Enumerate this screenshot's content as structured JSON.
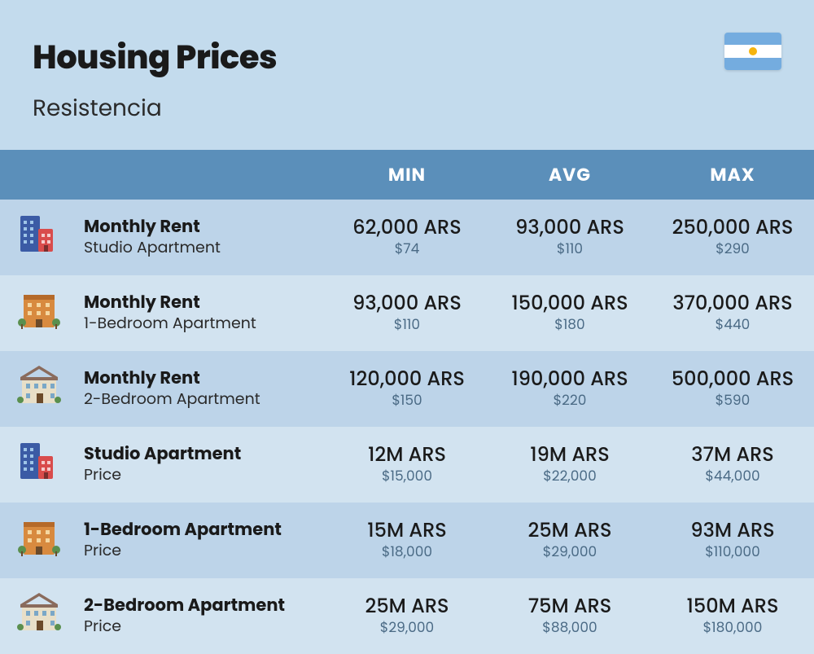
{
  "header": {
    "title": "Housing Prices",
    "subtitle": "Resistencia",
    "flag": {
      "name": "argentina-flag",
      "stripe_top": "#74acdf",
      "stripe_middle": "#ffffff",
      "stripe_bottom": "#74acdf",
      "sun": "#f6b40e"
    }
  },
  "table": {
    "columns": [
      "MIN",
      "AVG",
      "MAX"
    ],
    "header_bg": "#5b8fba",
    "header_fg": "#ffffff",
    "row_odd_bg": "#bdd4e9",
    "row_even_bg": "#d2e3f0",
    "val_sub_color": "#4a6a85",
    "rows": [
      {
        "icon": "tall-building-icon",
        "label_main": "Monthly Rent",
        "label_sub": "Studio Apartment",
        "min": {
          "main": "62,000 ARS",
          "sub": "$74"
        },
        "avg": {
          "main": "93,000 ARS",
          "sub": "$110"
        },
        "max": {
          "main": "250,000 ARS",
          "sub": "$290"
        }
      },
      {
        "icon": "mid-building-icon",
        "label_main": "Monthly Rent",
        "label_sub": "1-Bedroom Apartment",
        "min": {
          "main": "93,000 ARS",
          "sub": "$110"
        },
        "avg": {
          "main": "150,000 ARS",
          "sub": "$180"
        },
        "max": {
          "main": "370,000 ARS",
          "sub": "$440"
        }
      },
      {
        "icon": "house-icon",
        "label_main": "Monthly Rent",
        "label_sub": "2-Bedroom Apartment",
        "min": {
          "main": "120,000 ARS",
          "sub": "$150"
        },
        "avg": {
          "main": "190,000 ARS",
          "sub": "$220"
        },
        "max": {
          "main": "500,000 ARS",
          "sub": "$590"
        }
      },
      {
        "icon": "tall-building-icon",
        "label_main": "Studio Apartment",
        "label_sub": "Price",
        "min": {
          "main": "12M ARS",
          "sub": "$15,000"
        },
        "avg": {
          "main": "19M ARS",
          "sub": "$22,000"
        },
        "max": {
          "main": "37M ARS",
          "sub": "$44,000"
        }
      },
      {
        "icon": "mid-building-icon",
        "label_main": "1-Bedroom Apartment",
        "label_sub": "Price",
        "min": {
          "main": "15M ARS",
          "sub": "$18,000"
        },
        "avg": {
          "main": "25M ARS",
          "sub": "$29,000"
        },
        "max": {
          "main": "93M ARS",
          "sub": "$110,000"
        }
      },
      {
        "icon": "house-icon",
        "label_main": "2-Bedroom Apartment",
        "label_sub": "Price",
        "min": {
          "main": "25M ARS",
          "sub": "$29,000"
        },
        "avg": {
          "main": "75M ARS",
          "sub": "$88,000"
        },
        "max": {
          "main": "150M ARS",
          "sub": "$180,000"
        }
      }
    ]
  },
  "style": {
    "page_bg": "#c3dbed",
    "title_fontsize": 40,
    "subtitle_fontsize": 28,
    "colheader_fontsize": 22,
    "label_main_fontsize": 21,
    "label_sub_fontsize": 19,
    "val_main_fontsize": 24,
    "val_sub_fontsize": 17
  }
}
